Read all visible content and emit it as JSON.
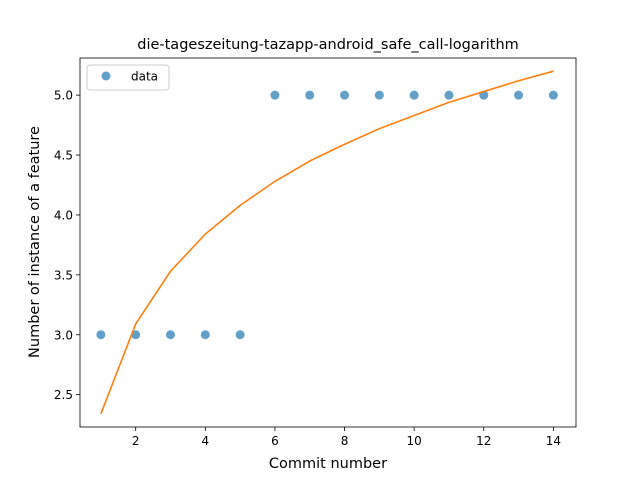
{
  "chart_data": {
    "type": "scatter",
    "title": "die-tageszeitung-tazapp-android_safe_call-logarithm",
    "xlabel": "Commit number",
    "ylabel": "Number of instance of a feature",
    "xlim": [
      0.4,
      14.65
    ],
    "ylim": [
      2.23,
      5.31
    ],
    "xticks": [
      2,
      4,
      6,
      8,
      10,
      12,
      14
    ],
    "yticks": [
      2.5,
      3.0,
      3.5,
      4.0,
      4.5,
      5.0
    ],
    "ytick_labels": [
      "2.5",
      "3.0",
      "3.5",
      "4.0",
      "4.5",
      "5.0"
    ],
    "legend": {
      "placement": "top-left",
      "entries": [
        "data"
      ]
    },
    "series": [
      {
        "name": "data",
        "kind": "scatter",
        "color": "#1f77b4",
        "x": [
          1,
          2,
          3,
          4,
          5,
          6,
          7,
          8,
          9,
          10,
          11,
          12,
          13,
          14
        ],
        "y": [
          3,
          3,
          3,
          3,
          3,
          5,
          5,
          5,
          5,
          5,
          5,
          5,
          5,
          5
        ]
      },
      {
        "kind": "line",
        "color": "#ff7f0e",
        "x": [
          1,
          2,
          3,
          4,
          5,
          6,
          7,
          8,
          9,
          10,
          11,
          12,
          13,
          14
        ],
        "y": [
          2.34,
          3.09,
          3.53,
          3.84,
          4.08,
          4.28,
          4.45,
          4.59,
          4.72,
          4.83,
          4.94,
          5.03,
          5.12,
          5.2
        ]
      }
    ]
  }
}
